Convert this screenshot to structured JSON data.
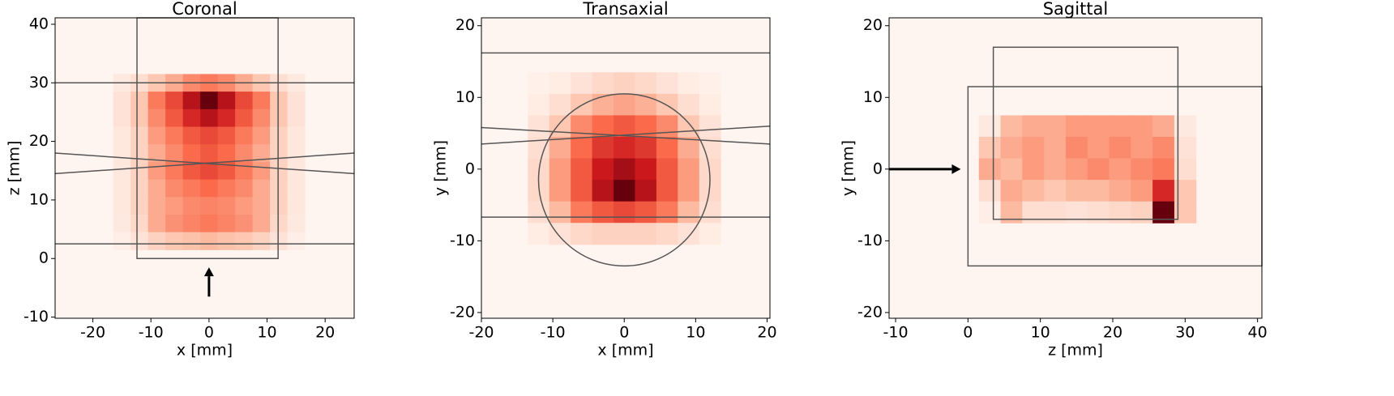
{
  "chart_data": [
    {
      "type": "heatmap",
      "title": "Coronal",
      "xlabel": "x [mm]",
      "ylabel": "z [mm]",
      "xlim": [
        -26.5,
        25
      ],
      "ylim": [
        -10.2,
        41.1
      ],
      "xticks": [
        -20,
        -10,
        0,
        10,
        20
      ],
      "yticks": [
        -10,
        0,
        10,
        20,
        30,
        40
      ],
      "x": [
        -15,
        -12,
        -9,
        -6,
        -3,
        0,
        3,
        6,
        9,
        12,
        15
      ],
      "y": [
        30,
        27,
        24,
        21,
        18,
        15,
        12,
        9,
        6,
        3
      ],
      "z": [
        [
          5,
          10,
          20,
          30,
          40,
          45,
          40,
          30,
          20,
          10,
          5
        ],
        [
          8,
          20,
          45,
          60,
          80,
          100,
          80,
          60,
          45,
          20,
          8
        ],
        [
          8,
          20,
          40,
          55,
          70,
          80,
          70,
          55,
          40,
          20,
          8
        ],
        [
          6,
          15,
          35,
          45,
          55,
          60,
          55,
          45,
          35,
          15,
          6
        ],
        [
          6,
          15,
          30,
          40,
          50,
          55,
          50,
          40,
          30,
          15,
          6
        ],
        [
          6,
          15,
          35,
          45,
          55,
          60,
          55,
          45,
          35,
          15,
          6
        ],
        [
          6,
          15,
          30,
          40,
          45,
          50,
          45,
          40,
          30,
          15,
          6
        ],
        [
          6,
          15,
          30,
          35,
          40,
          42,
          40,
          35,
          30,
          15,
          6
        ],
        [
          5,
          12,
          30,
          38,
          42,
          45,
          42,
          38,
          30,
          12,
          5
        ],
        [
          3,
          8,
          15,
          20,
          22,
          25,
          22,
          20,
          15,
          8,
          3
        ]
      ],
      "lines": [
        [
          -26.5,
          30,
          25,
          30
        ],
        [
          -26.5,
          2.5,
          25,
          2.5
        ],
        [
          -26.5,
          18,
          25,
          14.5
        ],
        [
          -26.5,
          14.5,
          25,
          18
        ]
      ],
      "rects": [
        [
          -12.4,
          0,
          11.9,
          41.1
        ]
      ],
      "circles": [],
      "arrows": [
        [
          0,
          -6.5,
          0,
          -1.5
        ]
      ]
    },
    {
      "type": "heatmap",
      "title": "Transaxial",
      "xlabel": "x [mm]",
      "ylabel": "y [mm]",
      "xlim": [
        -20,
        20.4
      ],
      "ylim": [
        -20.8,
        21.1
      ],
      "xticks": [
        -20,
        -10,
        0,
        10,
        20
      ],
      "yticks": [
        -20,
        -10,
        0,
        10,
        20
      ],
      "x": [
        -12,
        -9,
        -6,
        -3,
        0,
        3,
        6,
        9,
        12
      ],
      "y": [
        12,
        9,
        6,
        3,
        0,
        -3,
        -6,
        -9
      ],
      "z": [
        [
          2,
          4,
          8,
          12,
          15,
          12,
          8,
          4,
          2
        ],
        [
          4,
          10,
          20,
          28,
          32,
          28,
          20,
          10,
          4
        ],
        [
          8,
          20,
          40,
          50,
          55,
          50,
          40,
          20,
          8
        ],
        [
          10,
          30,
          50,
          65,
          70,
          65,
          50,
          30,
          10
        ],
        [
          12,
          35,
          55,
          75,
          85,
          75,
          55,
          35,
          12
        ],
        [
          12,
          35,
          55,
          80,
          100,
          80,
          55,
          35,
          12
        ],
        [
          10,
          25,
          45,
          55,
          60,
          55,
          45,
          25,
          10
        ],
        [
          4,
          8,
          12,
          15,
          15,
          15,
          12,
          8,
          4
        ]
      ],
      "lines": [
        [
          -20,
          16.2,
          20.4,
          16.2
        ],
        [
          -20,
          -6.7,
          20.4,
          -6.7
        ],
        [
          -20,
          5.8,
          20.4,
          3.5
        ],
        [
          -20,
          3.5,
          20.4,
          6
        ]
      ],
      "rects": [],
      "circles": [
        [
          0,
          -1.5,
          12
        ]
      ],
      "arrows": []
    },
    {
      "type": "heatmap",
      "title": "Sagittal",
      "xlabel": "z [mm]",
      "ylabel": "y [mm]",
      "xlim": [
        -10.9,
        40.6
      ],
      "ylim": [
        -20.8,
        21.1
      ],
      "xticks": [
        -10,
        0,
        10,
        20,
        30,
        40
      ],
      "yticks": [
        -20,
        -10,
        0,
        10,
        20
      ],
      "x": [
        3,
        6,
        9,
        12,
        15,
        18,
        21,
        24,
        27,
        30
      ],
      "y": [
        6,
        3,
        0,
        -3,
        -6
      ],
      "z": [
        [
          5,
          25,
          30,
          30,
          35,
          35,
          35,
          35,
          30,
          5
        ],
        [
          20,
          30,
          35,
          30,
          40,
          35,
          40,
          35,
          40,
          8
        ],
        [
          30,
          25,
          35,
          30,
          35,
          40,
          35,
          40,
          45,
          10
        ],
        [
          10,
          30,
          25,
          20,
          25,
          25,
          30,
          35,
          70,
          20
        ],
        [
          3,
          25,
          10,
          10,
          8,
          10,
          12,
          15,
          100,
          20
        ]
      ],
      "lines": [],
      "rects": [
        [
          3.5,
          -7,
          29,
          17
        ],
        [
          0,
          -13.5,
          40.6,
          11.5
        ]
      ],
      "circles": [],
      "arrows": [
        [
          -10.9,
          0,
          -1,
          0
        ]
      ]
    }
  ]
}
